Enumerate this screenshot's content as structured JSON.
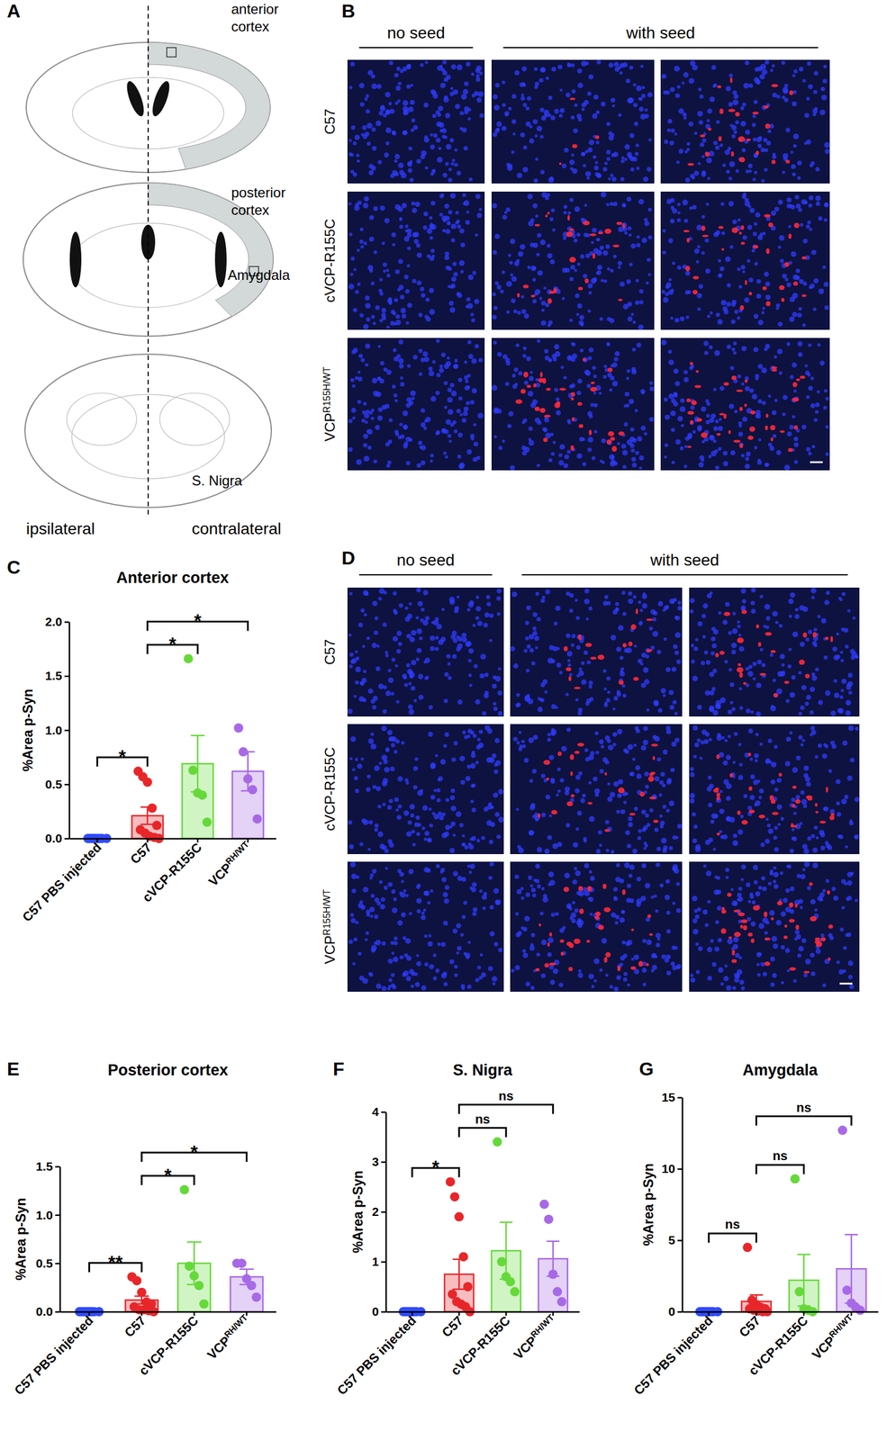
{
  "figure": {
    "panel_letters": [
      "A",
      "B",
      "C",
      "D",
      "E",
      "F",
      "G"
    ],
    "schematic": {
      "anterior_cortex": [
        "anterior",
        "cortex"
      ],
      "posterior_cortex": [
        "posterior",
        "cortex"
      ],
      "amygdala": "Amygdala",
      "s_nigra": "S. Nigra",
      "ipsilateral": "ipsilateral",
      "contralateral": "contralateral"
    },
    "micrographs": [
      {
        "headers": [
          "no seed",
          "with seed"
        ],
        "rows": [
          "C57",
          "cVCP-R155C",
          "VCP"
        ],
        "row_superscripts": [
          null,
          null,
          "R155H/WT"
        ]
      },
      {
        "headers": [
          "no seed",
          "with seed"
        ],
        "rows": [
          "C57",
          "cVCP-R155C",
          "VCP"
        ],
        "row_superscripts": [
          null,
          null,
          "R155H/WT"
        ]
      }
    ]
  },
  "chart_data": [
    {
      "type": "bar",
      "title": "Anterior cortex",
      "y_label": "%Area p-Syn",
      "categories": [
        "C57 PBS injected",
        "C57",
        "cVCP-R155C",
        "VCP"
      ],
      "category_superscripts": [
        null,
        null,
        null,
        "RH/WT"
      ],
      "values": [
        0,
        0.21,
        0.69,
        0.62
      ],
      "errors": [
        0,
        0.08,
        0.26,
        0.18
      ],
      "points": [
        [
          0,
          0,
          0,
          0,
          0,
          0,
          0,
          0
        ],
        [
          0.62,
          0.57,
          0.52,
          0.28,
          0.12,
          0.08,
          0.05,
          0.02,
          0.01,
          0
        ],
        [
          1.66,
          0.63,
          0.42,
          0.4,
          0.15
        ],
        [
          1.02,
          0.8,
          0.55,
          0.45,
          0.18
        ]
      ],
      "colors": [
        "#2f4bff",
        "#e8262a",
        "#66d93a",
        "#a769e6"
      ],
      "ylim": [
        0,
        2
      ],
      "yticks": [
        {
          "value": 0,
          "label": "0.0"
        },
        {
          "value": 0.5,
          "label": "0.5"
        },
        {
          "value": 1,
          "label": "1.0"
        },
        {
          "value": 1.5,
          "label": "1.5"
        },
        {
          "value": 2,
          "label": "2.0"
        }
      ],
      "comparisons": [
        {
          "groups": [
            "C57 PBS injected",
            "C57"
          ],
          "label": "*"
        },
        {
          "groups": [
            "C57",
            "cVCP-R155C"
          ],
          "label": "*"
        },
        {
          "groups": [
            "C57",
            "VCP"
          ],
          "label": "*"
        }
      ]
    },
    {
      "type": "bar",
      "title": "Posterior cortex",
      "y_label": "%Area p-Syn",
      "categories": [
        "C57 PBS injected",
        "C57",
        "cVCP-R155C",
        "VCP"
      ],
      "category_superscripts": [
        null,
        null,
        null,
        "RH/WT"
      ],
      "values": [
        0,
        0.12,
        0.5,
        0.36
      ],
      "errors": [
        0,
        0.04,
        0.22,
        0.08
      ],
      "points": [
        [
          0,
          0,
          0,
          0,
          0,
          0,
          0,
          0
        ],
        [
          0.36,
          0.32,
          0.2,
          0.1,
          0.08,
          0.05,
          0.02,
          0.02,
          0.01,
          0
        ],
        [
          1.26,
          0.47,
          0.37,
          0.27,
          0.08
        ],
        [
          0.5,
          0.5,
          0.34,
          0.27,
          0.15
        ]
      ],
      "colors": [
        "#2f4bff",
        "#e8262a",
        "#66d93a",
        "#a769e6"
      ],
      "ylim": [
        0,
        1.5
      ],
      "yticks": [
        {
          "value": 0,
          "label": "0.0"
        },
        {
          "value": 0.5,
          "label": "0.5"
        },
        {
          "value": 1,
          "label": "1.0"
        },
        {
          "value": 1.5,
          "label": "1.5"
        }
      ],
      "comparisons": [
        {
          "groups": [
            "C57 PBS injected",
            "C57"
          ],
          "label": "**"
        },
        {
          "groups": [
            "C57",
            "cVCP-R155C"
          ],
          "label": "*"
        },
        {
          "groups": [
            "C57",
            "VCP"
          ],
          "label": "*"
        }
      ]
    },
    {
      "type": "bar",
      "title": "S. Nigra",
      "y_label": "%Area p-Syn",
      "categories": [
        "C57 PBS injected",
        "C57",
        "cVCP-R155C",
        "VCP"
      ],
      "category_superscripts": [
        null,
        null,
        null,
        "RH/WT"
      ],
      "values": [
        0,
        0.75,
        1.22,
        1.06
      ],
      "errors": [
        0,
        0.3,
        0.57,
        0.35
      ],
      "points": [
        [
          0,
          0,
          0,
          0,
          0,
          0,
          0,
          0
        ],
        [
          2.6,
          2.3,
          1.9,
          1.1,
          0.5,
          0.35,
          0.2,
          0.15,
          0.1,
          0
        ],
        [
          3.4,
          1.0,
          0.7,
          0.6,
          0.4
        ],
        [
          2.15,
          1.85,
          0.75,
          0.4,
          0.2
        ]
      ],
      "colors": [
        "#2f4bff",
        "#e8262a",
        "#66d93a",
        "#a769e6"
      ],
      "ylim": [
        0,
        4
      ],
      "yticks": [
        0,
        1,
        2,
        3,
        4
      ],
      "comparisons": [
        {
          "groups": [
            "C57 PBS injected",
            "C57"
          ],
          "label": "*"
        },
        {
          "groups": [
            "C57",
            "cVCP-R155C"
          ],
          "label": "ns"
        },
        {
          "groups": [
            "C57",
            "VCP"
          ],
          "label": "ns"
        }
      ]
    },
    {
      "type": "bar",
      "title": "Amygdala",
      "y_label": "%Area p-Syn",
      "categories": [
        "C57 PBS injected",
        "C57",
        "cVCP-R155C",
        "VCP"
      ],
      "category_superscripts": [
        null,
        null,
        null,
        "RH/WT"
      ],
      "values": [
        0,
        0.72,
        2.2,
        3.0
      ],
      "errors": [
        0,
        0.45,
        1.8,
        2.4
      ],
      "points": [
        [
          0,
          0,
          0,
          0,
          0,
          0,
          0,
          0
        ],
        [
          4.5,
          0.8,
          0.5,
          0.3,
          0.2,
          0.2,
          0.1,
          0.05,
          0,
          0
        ],
        [
          9.3,
          1.4,
          0.2,
          0.1,
          0
        ],
        [
          12.7,
          1.5,
          0.6,
          0.3,
          0.1
        ]
      ],
      "colors": [
        "#2f4bff",
        "#e8262a",
        "#66d93a",
        "#a769e6"
      ],
      "ylim": [
        0,
        15
      ],
      "yticks": [
        0,
        5,
        10,
        15
      ],
      "comparisons": [
        {
          "groups": [
            "C57 PBS injected",
            "C57"
          ],
          "label": "ns"
        },
        {
          "groups": [
            "C57",
            "cVCP-R155C"
          ],
          "label": "ns"
        },
        {
          "groups": [
            "C57",
            "VCP"
          ],
          "label": "ns"
        }
      ]
    }
  ]
}
